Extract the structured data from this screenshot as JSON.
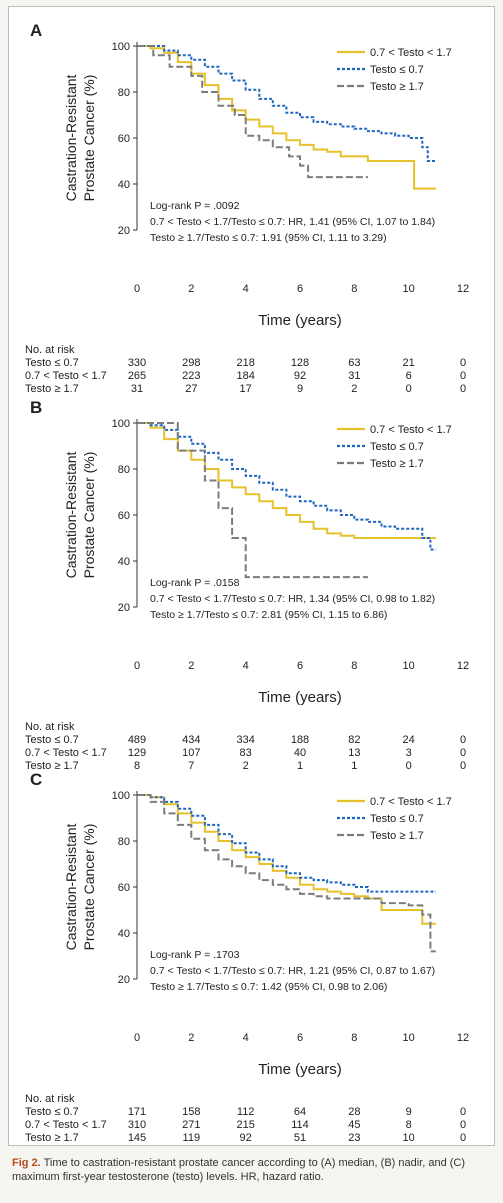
{
  "caption": {
    "label": "Fig 2.",
    "text": "Time to castration-resistant prostate cancer according to (A) median, (B) nadir, and (C) maximum first-year testosterone (testo) levels. HR, hazard ratio."
  },
  "colors": {
    "mid": "#e6c12b",
    "low": "#1f66c1",
    "high": "#7c7c7c"
  },
  "risk_header": "No. at risk",
  "chart_data": [
    {
      "type": "line",
      "panel": "A",
      "xlabel": "Time (years)",
      "ylabel_line1": "Castration-Resistant",
      "ylabel_line2": "Prostate Cancer (%)",
      "xlim": [
        0,
        12
      ],
      "ylim": [
        20,
        100
      ],
      "xticks": [
        0,
        2,
        4,
        6,
        8,
        10,
        12
      ],
      "yticks": [
        20,
        40,
        60,
        80,
        100
      ],
      "legend": [
        "0.7 < Testo < 1.7",
        "Testo ≤ 0.7",
        "Testo ≥ 1.7"
      ],
      "annotation": [
        "Log-rank P = .0092",
        "0.7 < Testo < 1.7/Testo ≤ 0.7: HR, 1.41 (95% CI, 1.07 to 1.84)",
        "Testo ≥ 1.7/Testo ≤ 0.7: 1.91 (95% CI, 1.11 to 3.29)"
      ],
      "series": [
        {
          "name": "0.7 < Testo < 1.7",
          "key": "mid",
          "x": [
            0,
            0.5,
            1,
            1.5,
            2,
            2.5,
            3,
            3.5,
            4,
            4.5,
            5,
            5.5,
            6,
            6.5,
            7,
            7.5,
            8,
            8.5,
            9,
            10,
            10.2,
            11
          ],
          "y": [
            100,
            99,
            97,
            93,
            88,
            83,
            77,
            72,
            68,
            65,
            62,
            59,
            57,
            55,
            54,
            52,
            52,
            50,
            50,
            50,
            38,
            38
          ]
        },
        {
          "name": "Testo ≤ 0.7",
          "key": "low",
          "x": [
            0,
            0.5,
            1,
            1.5,
            2,
            2.5,
            3,
            3.5,
            4,
            4.5,
            5,
            5.5,
            6,
            6.5,
            7,
            7.5,
            8,
            8.5,
            9,
            9.5,
            10,
            10.5,
            10.7,
            11
          ],
          "y": [
            100,
            100,
            98,
            96,
            94,
            91,
            88,
            85,
            81,
            77,
            74,
            71,
            69,
            67,
            66,
            65,
            64,
            63,
            62,
            61,
            60,
            56,
            50,
            50
          ]
        },
        {
          "name": "Testo ≥ 1.7",
          "key": "high",
          "x": [
            0,
            0.6,
            1.2,
            2,
            2.4,
            3,
            3.6,
            4,
            4.5,
            5,
            5.6,
            6,
            6.3,
            7,
            8.5
          ],
          "y": [
            100,
            96,
            91,
            87,
            80,
            74,
            70,
            61,
            59,
            56,
            52,
            48,
            43,
            43,
            43
          ]
        }
      ],
      "risk_x": [
        0,
        2,
        4,
        6,
        8,
        10,
        12
      ],
      "risk_table": [
        {
          "label": "Testo ≤ 0.7",
          "values": [
            "330",
            "298",
            "218",
            "128",
            "63",
            "21",
            "0"
          ]
        },
        {
          "label": "0.7 < Testo < 1.7",
          "values": [
            "265",
            "223",
            "184",
            "92",
            "31",
            "6",
            "0"
          ]
        },
        {
          "label": "Testo ≥ 1.7",
          "values": [
            "31",
            "27",
            "17",
            "9",
            "2",
            "0",
            "0"
          ]
        }
      ]
    },
    {
      "type": "line",
      "panel": "B",
      "xlabel": "Time (years)",
      "ylabel_line1": "Castration-Resistant",
      "ylabel_line2": "Prostate Cancer (%)",
      "xlim": [
        0,
        12
      ],
      "ylim": [
        20,
        100
      ],
      "xticks": [
        0,
        2,
        4,
        6,
        8,
        10,
        12
      ],
      "yticks": [
        20,
        40,
        60,
        80,
        100
      ],
      "legend": [
        "0.7 < Testo < 1.7",
        "Testo ≤ 0.7",
        "Testo ≥ 1.7"
      ],
      "annotation": [
        "Log-rank P = .0158",
        "0.7 < Testo < 1.7/Testo ≤ 0.7: HR, 1.34 (95% CI, 0.98 to 1.82)",
        "Testo ≥ 1.7/Testo ≤ 0.7: 2.81 (95% CI, 1.15 to 6.86)"
      ],
      "series": [
        {
          "name": "0.7 < Testo < 1.7",
          "key": "mid",
          "x": [
            0,
            0.5,
            1,
            1.5,
            2,
            2.5,
            3,
            3.5,
            4,
            4.5,
            5,
            5.5,
            6,
            6.5,
            7,
            7.5,
            8,
            9,
            10,
            11
          ],
          "y": [
            100,
            98,
            93,
            88,
            84,
            80,
            75,
            72,
            69,
            66,
            63,
            60,
            57,
            54,
            52,
            51,
            50,
            50,
            50,
            50
          ]
        },
        {
          "name": "Testo ≤ 0.7",
          "key": "low",
          "x": [
            0,
            0.5,
            1,
            1.5,
            2,
            2.5,
            3,
            3.5,
            4,
            4.5,
            5,
            5.5,
            6,
            6.5,
            7,
            7.5,
            8,
            8.5,
            9,
            9.5,
            10,
            10.5,
            10.8,
            11
          ],
          "y": [
            100,
            99,
            97,
            94,
            91,
            87,
            84,
            80,
            77,
            74,
            71,
            68,
            66,
            64,
            62,
            60,
            58,
            57,
            55,
            54,
            54,
            50,
            45,
            45
          ]
        },
        {
          "name": "Testo ≥ 1.7",
          "key": "high",
          "x": [
            0,
            1.5,
            2.2,
            2.5,
            3,
            3.5,
            4,
            5,
            6,
            7,
            8.5
          ],
          "y": [
            100,
            88,
            88,
            75,
            63,
            50,
            33,
            33,
            33,
            33,
            33
          ]
        }
      ],
      "risk_x": [
        0,
        2,
        4,
        6,
        8,
        10,
        12
      ],
      "risk_table": [
        {
          "label": "Testo ≤ 0.7",
          "values": [
            "489",
            "434",
            "334",
            "188",
            "82",
            "24",
            "0"
          ]
        },
        {
          "label": "0.7 < Testo < 1.7",
          "values": [
            "129",
            "107",
            "83",
            "40",
            "13",
            "3",
            "0"
          ]
        },
        {
          "label": "Testo ≥ 1.7",
          "values": [
            "8",
            "7",
            "2",
            "1",
            "1",
            "0",
            "0"
          ]
        }
      ]
    },
    {
      "type": "line",
      "panel": "C",
      "xlabel": "Time (years)",
      "ylabel_line1": "Castration-Resistant",
      "ylabel_line2": "Prostate Cancer (%)",
      "xlim": [
        0,
        12
      ],
      "ylim": [
        20,
        100
      ],
      "xticks": [
        0,
        2,
        4,
        6,
        8,
        10,
        12
      ],
      "yticks": [
        20,
        40,
        60,
        80,
        100
      ],
      "legend": [
        "0.7 < Testo < 1.7",
        "Testo ≤ 0.7",
        "Testo ≥ 1.7"
      ],
      "annotation": [
        "Log-rank P = .1703",
        "0.7 < Testo < 1.7/Testo ≤ 0.7: HR, 1.21 (95% CI, 0.87 to 1.67)",
        "Testo ≥ 1.7/Testo ≤ 0.7: 1.42 (95% CI, 0.98 to 2.06)"
      ],
      "series": [
        {
          "name": "0.7 < Testo < 1.7",
          "key": "mid",
          "x": [
            0,
            0.5,
            1,
            1.5,
            2,
            2.5,
            3,
            3.5,
            4,
            4.5,
            5,
            5.5,
            6,
            6.5,
            7,
            7.5,
            8,
            8.5,
            9,
            10,
            10.5,
            11
          ],
          "y": [
            100,
            99,
            96,
            92,
            88,
            84,
            80,
            76,
            73,
            70,
            67,
            64,
            61,
            59,
            58,
            57,
            56,
            55,
            50,
            50,
            44,
            44
          ]
        },
        {
          "name": "Testo ≤ 0.7",
          "key": "low",
          "x": [
            0,
            0.5,
            1,
            1.5,
            2,
            2.5,
            3,
            3.5,
            4,
            4.5,
            5,
            5.5,
            6,
            6.5,
            7,
            7.5,
            8,
            8.5,
            9,
            10,
            11
          ],
          "y": [
            100,
            99,
            97,
            94,
            91,
            87,
            83,
            79,
            75,
            72,
            69,
            66,
            64,
            63,
            62,
            61,
            60,
            58,
            58,
            58,
            58
          ]
        },
        {
          "name": "Testo ≥ 1.7",
          "key": "high",
          "x": [
            0,
            0.5,
            1,
            1.5,
            2,
            2.5,
            3,
            3.5,
            4,
            4.5,
            5,
            5.5,
            6,
            6.5,
            7,
            7.5,
            8,
            9,
            10,
            10.5,
            10.8,
            11
          ],
          "y": [
            100,
            97,
            92,
            87,
            81,
            76,
            72,
            69,
            66,
            63,
            61,
            59,
            57,
            56,
            55,
            55,
            55,
            53,
            52,
            48,
            32,
            32
          ]
        }
      ],
      "risk_x": [
        0,
        2,
        4,
        6,
        8,
        10,
        12
      ],
      "risk_table": [
        {
          "label": "Testo ≤ 0.7",
          "values": [
            "171",
            "158",
            "112",
            "64",
            "28",
            "9",
            "0"
          ]
        },
        {
          "label": "0.7 < Testo < 1.7",
          "values": [
            "310",
            "271",
            "215",
            "114",
            "45",
            "8",
            "0"
          ]
        },
        {
          "label": "Testo ≥ 1.7",
          "values": [
            "145",
            "119",
            "92",
            "51",
            "23",
            "10",
            "0"
          ]
        }
      ]
    }
  ]
}
